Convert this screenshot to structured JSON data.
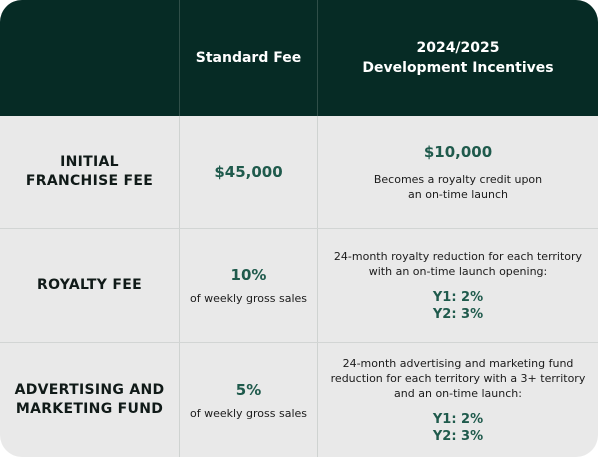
{
  "header": {
    "col1": "",
    "col2": "Standard Fee",
    "col3_line1": "2024/2025",
    "col3_line2": "Development Incentives"
  },
  "rows": [
    {
      "label_line1": "INITIAL",
      "label_line2": "FRANCHISE FEE",
      "standard": "$45,000",
      "incentive_value": "$10,000",
      "incentive_note_line1": "Becomes a royalty credit upon",
      "incentive_note_line2": "an on-time launch"
    },
    {
      "label_line1": "ROYALTY FEE",
      "standard": "10%",
      "standard_note": "of weekly gross sales",
      "incentive_text_line1": "24-month royalty reduction for each territory",
      "incentive_text_line2": "with an on-time launch opening:",
      "y1": "Y1: 2%",
      "y2": "Y2: 3%"
    },
    {
      "label_line1": "ADVERTISING AND",
      "label_line2": "MARKETING FUND",
      "standard": "5%",
      "standard_note": "of weekly gross sales",
      "incentive_text_line1": "24-month advertising and marketing fund",
      "incentive_text_line2": "reduction for each territory with a 3+ territory",
      "incentive_text_line3": "and an on-time launch:",
      "y1": "Y1: 2%",
      "y2": "Y2: 3%"
    }
  ]
}
